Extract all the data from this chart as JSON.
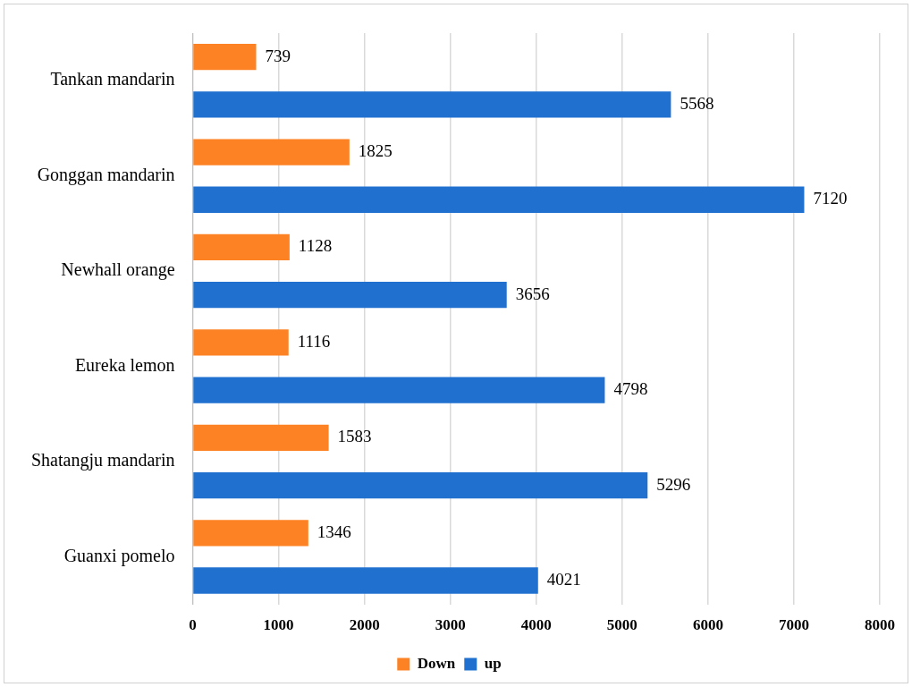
{
  "chart_data": {
    "type": "bar",
    "orientation": "horizontal",
    "categories": [
      "Tankan mandarin",
      "Gonggan mandarin",
      "Newhall orange",
      "Eureka lemon",
      "Shatangju mandarin",
      "Guanxi pomelo"
    ],
    "series": [
      {
        "name": "Down",
        "color": "#fd8224",
        "values": [
          739,
          1825,
          1128,
          1116,
          1583,
          1346
        ]
      },
      {
        "name": "up",
        "color": "#1f70cf",
        "values": [
          5568,
          7120,
          3656,
          4798,
          5296,
          4021
        ]
      }
    ],
    "xlim": [
      0,
      8000
    ],
    "xticks": [
      0,
      1000,
      2000,
      3000,
      4000,
      5000,
      6000,
      7000,
      8000
    ],
    "grid": "x",
    "legend": "bottom",
    "data_labels": true
  }
}
